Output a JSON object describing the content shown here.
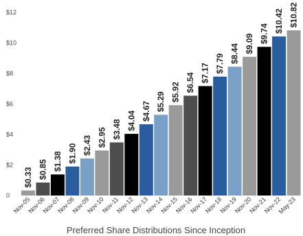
{
  "chart_data": {
    "type": "bar",
    "xlabel": "Preferred Share Distributions Since Inception",
    "ylabel": "",
    "ylim": [
      0,
      12
    ],
    "yticks": [
      0,
      2,
      4,
      6,
      8,
      10,
      12
    ],
    "ytick_labels": [
      "0",
      "$2",
      "$4",
      "$6",
      "$8",
      "$10",
      "$12"
    ],
    "grid": false,
    "categories": [
      "Nov-05",
      "Nov-06",
      "Nov-07",
      "Nov-08",
      "Nov-09",
      "Nov-10",
      "Nov-11",
      "Nov-12",
      "Nov-13",
      "Nov-14",
      "Nov-15",
      "Nov-16",
      "Nov-17",
      "Nov-18",
      "Nov-19",
      "Nov-20",
      "Nov-21",
      "Nov-22",
      "May-23"
    ],
    "values": [
      0.33,
      0.85,
      1.38,
      1.9,
      2.43,
      2.95,
      3.48,
      4.04,
      4.67,
      5.29,
      5.92,
      6.54,
      7.17,
      7.79,
      8.44,
      9.09,
      9.74,
      10.42,
      10.82
    ],
    "value_labels": [
      "$0.33",
      "$0.85",
      "$1.38",
      "$1.90",
      "$2.43",
      "$2.95",
      "$3.48",
      "$4.04",
      "$4.67",
      "$5.29",
      "$5.92",
      "$6.54",
      "$7.17",
      "$7.79",
      "$8.44",
      "$9.09",
      "$9.74",
      "$10.42",
      "$10.82"
    ],
    "bar_colors": [
      "#9a9a9a",
      "#4d4d4d",
      "#000000",
      "#2a5d9e",
      "#7aa0c8",
      "#9a9a9a",
      "#4d4d4d",
      "#000000",
      "#2a5d9e",
      "#7aa0c8",
      "#9a9a9a",
      "#4d4d4d",
      "#000000",
      "#2a5d9e",
      "#7aa0c8",
      "#9a9a9a",
      "#000000",
      "#2a5d9e",
      "#9a9a9a"
    ]
  }
}
